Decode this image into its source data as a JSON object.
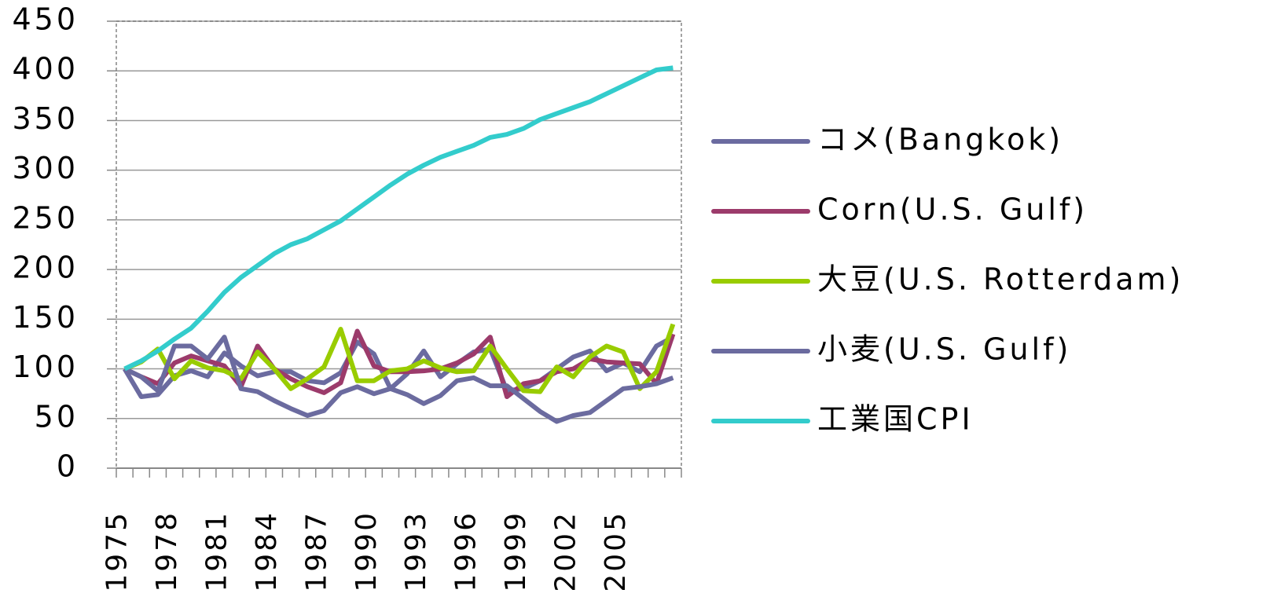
{
  "chart_data": {
    "type": "line",
    "categories": [
      "1975",
      null,
      null,
      "1978",
      null,
      null,
      "1981",
      null,
      null,
      "1984",
      null,
      null,
      "1987",
      null,
      null,
      "1990",
      null,
      null,
      "1993",
      null,
      null,
      "1996",
      null,
      null,
      "1999",
      null,
      null,
      "2002",
      null,
      null,
      "2005",
      null,
      null,
      null
    ],
    "series": [
      {
        "name": "コメ(Bangkok)",
        "color": "#6b6ba0",
        "values": [
          100,
          72,
          74,
          93,
          98,
          92,
          116,
          103,
          93,
          97,
          97,
          88,
          86,
          96,
          127,
          115,
          80,
          95,
          118,
          92,
          105,
          117,
          120,
          78,
          80,
          88,
          100,
          112,
          118,
          98,
          106,
          97,
          123,
          132
        ]
      },
      {
        "name": "Corn(U.S. Gulf)",
        "color": "#9c3b6b",
        "values": [
          100,
          92,
          85,
          106,
          113,
          108,
          103,
          82,
          123,
          100,
          90,
          82,
          76,
          86,
          138,
          103,
          97,
          97,
          98,
          100,
          106,
          115,
          132,
          72,
          85,
          88,
          97,
          100,
          110,
          107,
          106,
          105,
          85,
          135
        ]
      },
      {
        "name": "大豆(U.S. Rotterdam)",
        "color": "#99cc00",
        "values": [
          100,
          107,
          120,
          90,
          108,
          101,
          98,
          90,
          117,
          100,
          80,
          90,
          102,
          140,
          88,
          88,
          98,
          100,
          108,
          101,
          97,
          98,
          123,
          100,
          78,
          77,
          102,
          92,
          112,
          123,
          117,
          80,
          97,
          145
        ]
      },
      {
        "name": "小麦(U.S. Gulf)",
        "color": "#6b6b9f",
        "values": [
          100,
          92,
          78,
          123,
          123,
          110,
          132,
          80,
          77,
          68,
          60,
          53,
          58,
          76,
          82,
          75,
          80,
          74,
          65,
          73,
          88,
          91,
          83,
          83,
          70,
          57,
          47,
          53,
          56,
          68,
          80,
          82,
          85,
          91
        ]
      },
      {
        "name": "工業国CPI",
        "color": "#33cccc",
        "values": [
          100,
          108,
          118,
          130,
          141,
          158,
          177,
          192,
          204,
          216,
          225,
          231,
          240,
          249,
          261,
          273,
          285,
          296,
          305,
          313,
          319,
          325,
          333,
          336,
          342,
          351,
          357,
          363,
          369,
          377,
          385,
          393,
          401,
          403
        ]
      }
    ],
    "ylim": [
      0,
      450
    ],
    "yticks": [
      0,
      50,
      100,
      150,
      200,
      250,
      300,
      350,
      400,
      450
    ],
    "grid": true
  }
}
